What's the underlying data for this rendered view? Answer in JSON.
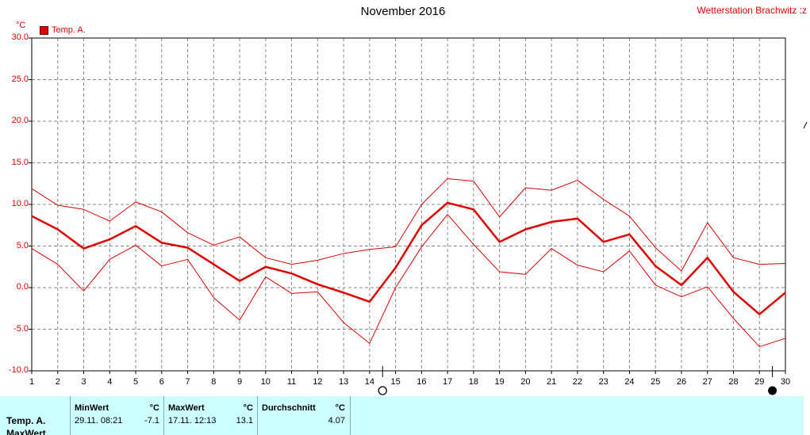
{
  "title": "November 2016",
  "station": "Wetterstation Brachwitz :z",
  "unit": "°C",
  "legend": "Temp. A.",
  "colors": {
    "series": "#e00000",
    "grid": "#888888",
    "stats_bg": "#ccffff"
  },
  "chart_data": {
    "type": "line",
    "title": "November 2016",
    "ylabel": "°C",
    "ylim": [
      -10,
      30
    ],
    "yticks": [
      "30.0",
      "25.0",
      "20.0",
      "15.0",
      "10.0",
      "5.0",
      "0.0",
      "-5.0",
      "-10.0"
    ],
    "x": [
      1,
      2,
      3,
      4,
      5,
      6,
      7,
      8,
      9,
      10,
      11,
      12,
      13,
      14,
      15,
      16,
      17,
      18,
      19,
      20,
      21,
      22,
      23,
      24,
      25,
      26,
      27,
      28,
      29,
      30
    ],
    "grid": true,
    "legend": "top-left",
    "series": [
      {
        "name": "Temp. A.",
        "role": "mean",
        "values": [
          8.6,
          7.0,
          4.7,
          5.8,
          7.4,
          5.4,
          4.8,
          2.8,
          0.8,
          2.5,
          1.7,
          0.4,
          -0.6,
          -1.7,
          2.4,
          7.5,
          10.2,
          9.4,
          5.5,
          7.0,
          7.9,
          8.3,
          5.5,
          6.4,
          2.6,
          0.3,
          3.6,
          -0.5,
          -3.2,
          -0.6
        ]
      },
      {
        "role": "max",
        "values": [
          11.9,
          9.9,
          9.4,
          8.0,
          10.3,
          9.1,
          6.6,
          5.1,
          6.1,
          3.6,
          2.8,
          3.3,
          4.1,
          4.6,
          4.9,
          10.0,
          13.1,
          12.8,
          8.5,
          12.0,
          11.7,
          12.9,
          10.6,
          8.6,
          4.8,
          2.0,
          7.8,
          3.6,
          2.8,
          2.9
        ]
      },
      {
        "role": "min",
        "values": [
          4.7,
          2.8,
          -0.4,
          3.4,
          5.1,
          2.6,
          3.4,
          -1.2,
          -3.9,
          1.3,
          -0.7,
          -0.5,
          -4.2,
          -6.7,
          0.0,
          4.9,
          8.8,
          5.2,
          1.9,
          1.6,
          4.7,
          2.7,
          1.9,
          4.4,
          0.3,
          -1.1,
          0.1,
          -3.7,
          -7.1,
          -6.1
        ]
      }
    ]
  },
  "markers": {
    "new_moon_day": 14.5,
    "full_moon_day": 29.5
  },
  "stats": {
    "row_label": "Temp. A.",
    "row_label_2": "MaxWert",
    "min": {
      "header": "MinWert",
      "unit": "°C",
      "when": "29.11.  08:21",
      "value": "-7.1"
    },
    "max": {
      "header": "MaxWert",
      "unit": "°C",
      "when": "17.11.  12:13",
      "value": "13.1"
    },
    "avg": {
      "header": "Durchschnitt",
      "unit": "°C",
      "value": "4.07"
    }
  }
}
